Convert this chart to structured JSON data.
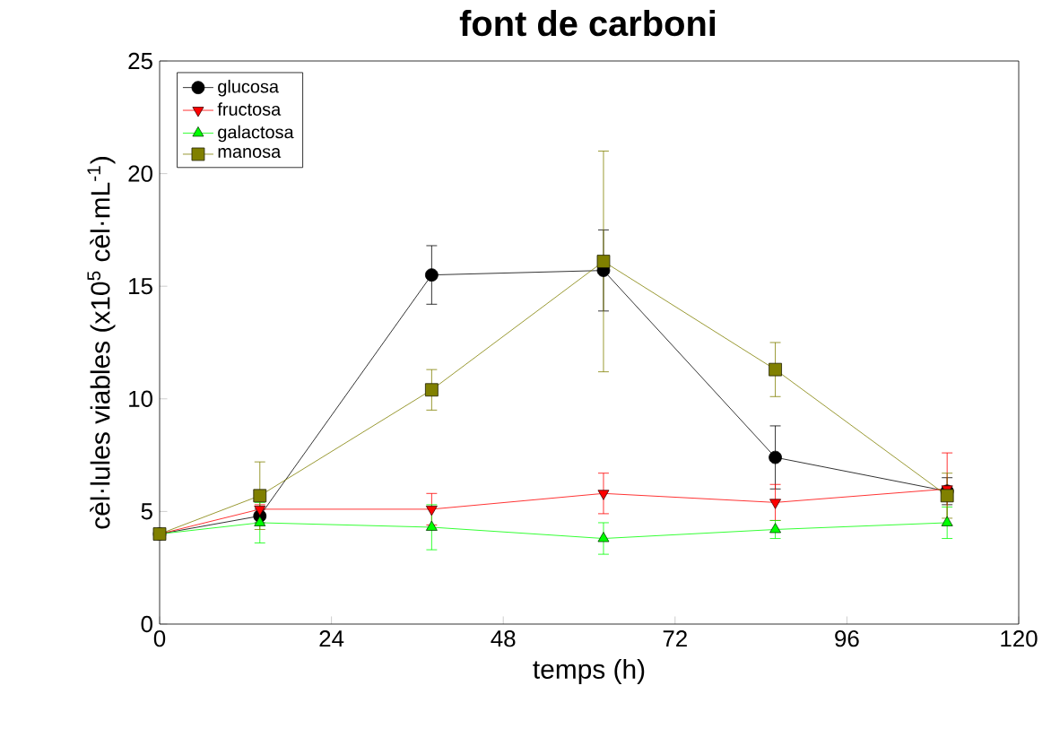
{
  "chart_data": {
    "type": "line",
    "title": "font de carboni",
    "xlabel": "temps (h)",
    "ylabel": "cèl·lules viables (x10$^{5}$ cèl·mL$^{-1}$)",
    "x": [
      0,
      14,
      38,
      62,
      86,
      110
    ],
    "series": [
      {
        "name": "glucosa",
        "color": "#000000",
        "marker": "circle",
        "values": [
          4,
          4.8,
          15.5,
          15.7,
          7.4,
          5.9
        ],
        "errors": [
          0,
          0.3,
          1.3,
          1.8,
          1.4,
          0.6
        ]
      },
      {
        "name": "fructosa",
        "color": "#ff0000",
        "marker": "triangle_down",
        "values": [
          4,
          5.1,
          5.1,
          5.8,
          5.4,
          6.0
        ],
        "errors": [
          0,
          0.2,
          0.7,
          0.9,
          0.8,
          1.6
        ]
      },
      {
        "name": "galactosa",
        "color": "#00ff00",
        "marker": "triangle",
        "values": [
          4,
          4.5,
          4.3,
          3.8,
          4.2,
          4.5
        ],
        "errors": [
          0,
          0.9,
          1.0,
          0.7,
          0.4,
          0.7
        ]
      },
      {
        "name": "manosa",
        "color": "#808000",
        "marker": "square",
        "values": [
          4,
          5.7,
          10.4,
          16.1,
          11.3,
          5.7
        ],
        "errors": [
          0,
          1.5,
          0.9,
          4.9,
          1.2,
          1.0
        ]
      }
    ],
    "xlim": [
      0,
      120
    ],
    "xticks": [
      0,
      24,
      48,
      72,
      96,
      120
    ],
    "ylim": [
      0,
      25
    ],
    "yticks": [
      0,
      5,
      10,
      15,
      20,
      25
    ],
    "grid": false,
    "legend": "top left",
    "line_style": "solid"
  }
}
